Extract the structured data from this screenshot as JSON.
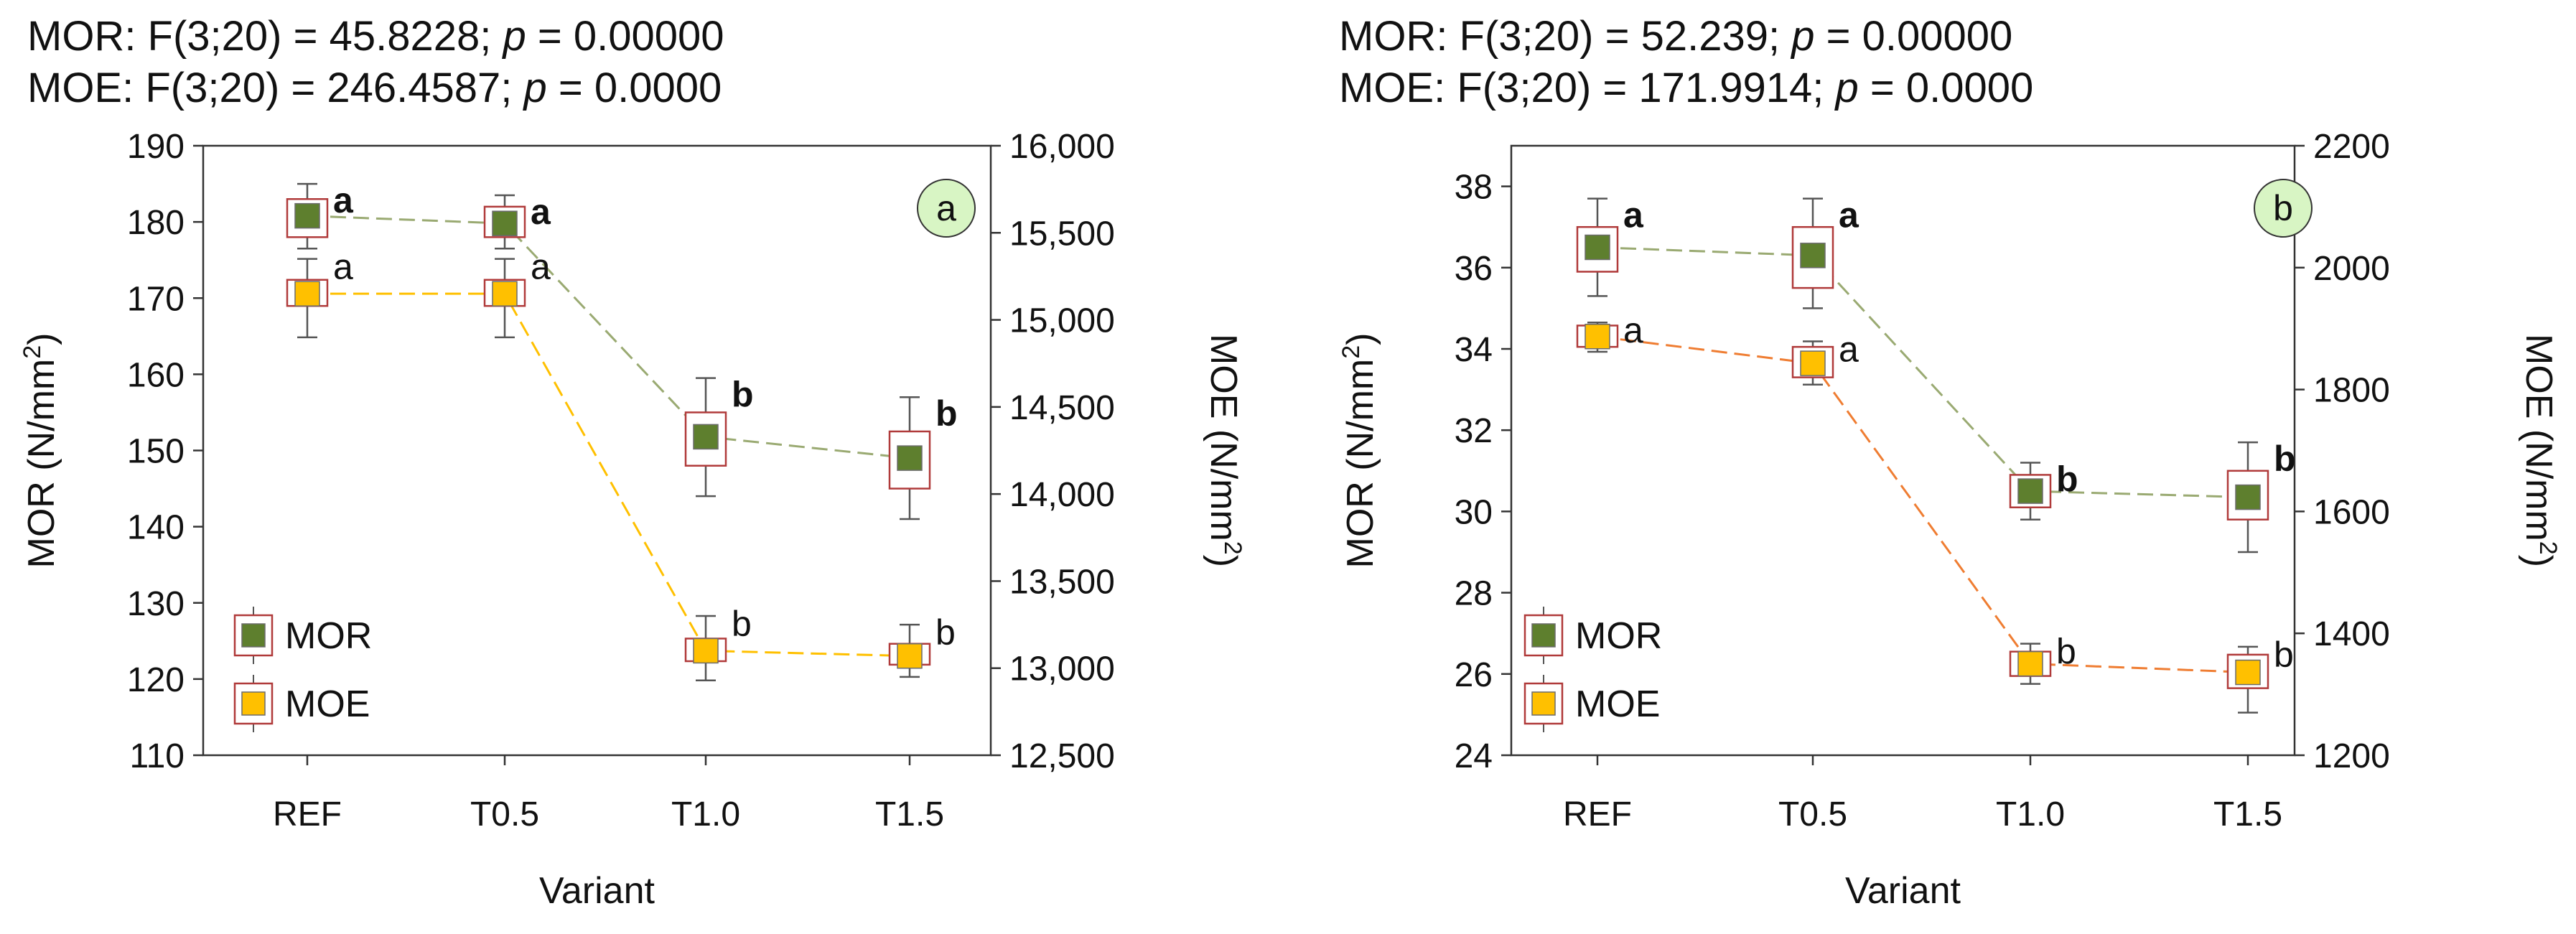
{
  "chart_data": [
    {
      "type": "line",
      "panel_label": "a",
      "stats": {
        "mor": {
          "prefix": "MOR: F(3;20) = 45.8228; ",
          "p_symbol": "p",
          "suffix": " = 0.00000"
        },
        "moe": {
          "prefix": "MOE: F(3;20) = 246.4587; ",
          "p_symbol": "p",
          "suffix": " = 0.0000"
        }
      },
      "categories": [
        "REF",
        "T0.5",
        "T1.0",
        "T1.5"
      ],
      "xlabel": "Variant",
      "ylabel_left": {
        "main": "MOR (N/mm",
        "sup": "2",
        "end": ")"
      },
      "ylabel_right": {
        "main": "MOE (N/mm",
        "sup": "2",
        "end": ")"
      },
      "y_left": {
        "lim": [
          110,
          190
        ],
        "ticks": [
          110,
          120,
          130,
          140,
          150,
          160,
          170,
          180,
          190
        ],
        "tick_labels": [
          "110",
          "120",
          "130",
          "140",
          "150",
          "160",
          "170",
          "180",
          "190"
        ]
      },
      "y_right": {
        "lim": [
          12500,
          16000
        ],
        "ticks": [
          12500,
          13000,
          13500,
          14000,
          14500,
          15000,
          15500,
          16000
        ],
        "tick_labels": [
          "12,500",
          "13,000",
          "13,500",
          "14,000",
          "14,500",
          "15,000",
          "15,500",
          "16,000"
        ]
      },
      "series": [
        {
          "name": "MOR",
          "axis": "left",
          "color": "#5e7f2e",
          "line_color": "#9aaa72",
          "values": [
            180.8,
            179.8,
            151.8,
            149.0
          ],
          "box_low": [
            178.0,
            178.0,
            148.0,
            145.0
          ],
          "box_high": [
            183.0,
            182.0,
            155.0,
            152.5
          ],
          "whisker_low": [
            176.5,
            176.5,
            144.0,
            141.0
          ],
          "whisker_high": [
            185.0,
            183.5,
            159.5,
            157.0
          ],
          "letters": [
            "a",
            "a",
            "b",
            "b"
          ],
          "letters_bold": true
        },
        {
          "name": "MOE",
          "axis": "right",
          "color": "#ffc000",
          "line_color": "#ffc000",
          "values": [
            15150,
            15150,
            13100,
            13070
          ],
          "box_low": [
            15080,
            15080,
            13040,
            13020
          ],
          "box_high": [
            15230,
            15230,
            13170,
            13140
          ],
          "whisker_low": [
            14900,
            14900,
            12930,
            12950
          ],
          "whisker_high": [
            15350,
            15350,
            13300,
            13250
          ],
          "letters": [
            "a",
            "a",
            "b",
            "b"
          ],
          "letters_bold": false
        }
      ],
      "legend": {
        "position": "bottom-left",
        "items": [
          "MOR",
          "MOE"
        ]
      },
      "grid": false
    },
    {
      "type": "line",
      "panel_label": "b",
      "stats": {
        "mor": {
          "prefix": "MOR: F(3;20) = 52.239; ",
          "p_symbol": "p",
          "suffix": " = 0.00000"
        },
        "moe": {
          "prefix": "MOE: F(3;20) = 171.9914; ",
          "p_symbol": "p",
          "suffix": " = 0.0000"
        }
      },
      "categories": [
        "REF",
        "T0.5",
        "T1.0",
        "T1.5"
      ],
      "xlabel": "Variant",
      "ylabel_left": {
        "main": "MOR (N/mm",
        "sup": "2",
        "end": ")"
      },
      "ylabel_right": {
        "main": "MOE (N/mm",
        "sup": "2",
        "end": ")"
      },
      "y_left": {
        "lim": [
          24,
          39
        ],
        "ticks": [
          24,
          26,
          28,
          30,
          32,
          34,
          36,
          38
        ],
        "tick_labels": [
          "24",
          "26",
          "28",
          "30",
          "32",
          "34",
          "36",
          "38"
        ]
      },
      "y_right": {
        "lim": [
          1200,
          2200
        ],
        "ticks": [
          1200,
          1400,
          1600,
          1800,
          2000,
          2200
        ],
        "tick_labels": [
          "1200",
          "1400",
          "1600",
          "1800",
          "2000",
          "2200"
        ]
      },
      "series": [
        {
          "name": "MOR",
          "axis": "left",
          "color": "#5e7f2e",
          "line_color": "#9aaa72",
          "values": [
            36.5,
            36.3,
            30.5,
            30.35
          ],
          "box_low": [
            35.9,
            35.5,
            30.1,
            29.8
          ],
          "box_high": [
            37.0,
            37.0,
            30.9,
            31.0
          ],
          "whisker_low": [
            35.3,
            35.0,
            29.8,
            29.0
          ],
          "whisker_high": [
            37.7,
            37.7,
            31.2,
            31.7
          ],
          "letters": [
            "a",
            "a",
            "b",
            "b"
          ],
          "letters_bold": true
        },
        {
          "name": "MOE",
          "axis": "right",
          "color": "#ffc000",
          "line_color": "#ef7d32",
          "values": [
            1887,
            1843,
            1350,
            1336
          ],
          "box_low": [
            1870,
            1820,
            1330,
            1310
          ],
          "box_high": [
            1905,
            1870,
            1370,
            1365
          ],
          "whisker_low": [
            1862,
            1808,
            1317,
            1270
          ],
          "whisker_high": [
            1910,
            1879,
            1383,
            1378
          ],
          "letters": [
            "a",
            "a",
            "b",
            "b"
          ],
          "letters_bold": false
        }
      ],
      "legend": {
        "position": "bottom-left",
        "items": [
          "MOR",
          "MOE"
        ]
      },
      "grid": false
    }
  ]
}
